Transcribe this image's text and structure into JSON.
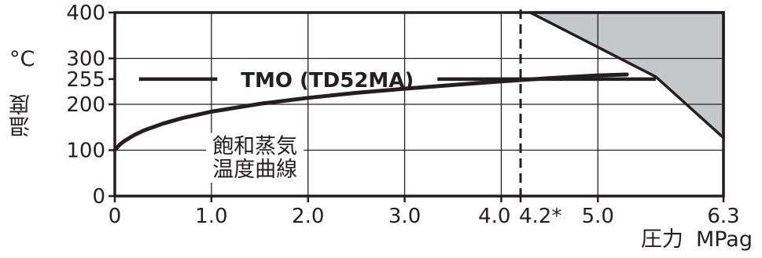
{
  "chart_data": {
    "type": "line",
    "title": "",
    "xlabel": "MPag",
    "xlabel_prefix": "圧力",
    "ylabel": "温度",
    "ylabel_unit": "°C",
    "xlim": [
      0,
      6.3
    ],
    "ylim": [
      0,
      400
    ],
    "x_ticks": [
      {
        "value": 0,
        "label": "0"
      },
      {
        "value": 1.0,
        "label": "1.0"
      },
      {
        "value": 2.0,
        "label": "2.0"
      },
      {
        "value": 3.0,
        "label": "3.0"
      },
      {
        "value": 4.0,
        "label": "4.0"
      },
      {
        "value": 4.2,
        "label": "4.2*"
      },
      {
        "value": 5.0,
        "label": "5.0"
      },
      {
        "value": 6.3,
        "label": "6.3"
      }
    ],
    "y_ticks": [
      {
        "value": 0,
        "label": "0"
      },
      {
        "value": 100,
        "label": "100"
      },
      {
        "value": 200,
        "label": "200"
      },
      {
        "value": 255,
        "label": "255"
      },
      {
        "value": 300,
        "label": "300"
      },
      {
        "value": 400,
        "label": "400"
      }
    ],
    "x_gridlines": [
      1.0,
      2.0,
      3.0,
      4.0,
      5.0,
      6.3
    ],
    "y_gridlines": [
      100,
      200,
      300
    ],
    "series": [
      {
        "role": "saturation-curve",
        "x": [
          0,
          0.05,
          0.1,
          0.2,
          0.3,
          0.5,
          0.7,
          1.0,
          1.5,
          2.0,
          2.5,
          3.0,
          3.5,
          4.0,
          4.5,
          5.0,
          5.3
        ],
        "y": [
          100,
          112,
          120,
          133,
          143,
          158,
          170,
          184,
          201,
          214,
          225,
          234,
          242,
          250,
          257,
          263,
          265
        ]
      },
      {
        "role": "max-temperature-line",
        "x": [
          0.25,
          5.6
        ],
        "y": [
          255,
          255
        ]
      }
    ],
    "dashed_line_x": 4.2,
    "shaded_region": {
      "x": [
        4.3,
        6.3,
        6.3,
        5.6
      ],
      "y": [
        400,
        400,
        127,
        260
      ]
    },
    "annotations": [
      {
        "role": "series-label",
        "text": "TMO (TD52MA)",
        "x": 2.2,
        "y": 255
      },
      {
        "role": "curve-label-line1",
        "text": "飽和蒸気",
        "x": 1.45,
        "y": 110
      },
      {
        "role": "curve-label-line2",
        "text": "温度曲線",
        "x": 1.45,
        "y": 60
      }
    ],
    "grid": true,
    "legend": "none",
    "colors": {
      "line": "#231f20",
      "grid": "#231f20",
      "shade": "#c6c7c9"
    }
  }
}
